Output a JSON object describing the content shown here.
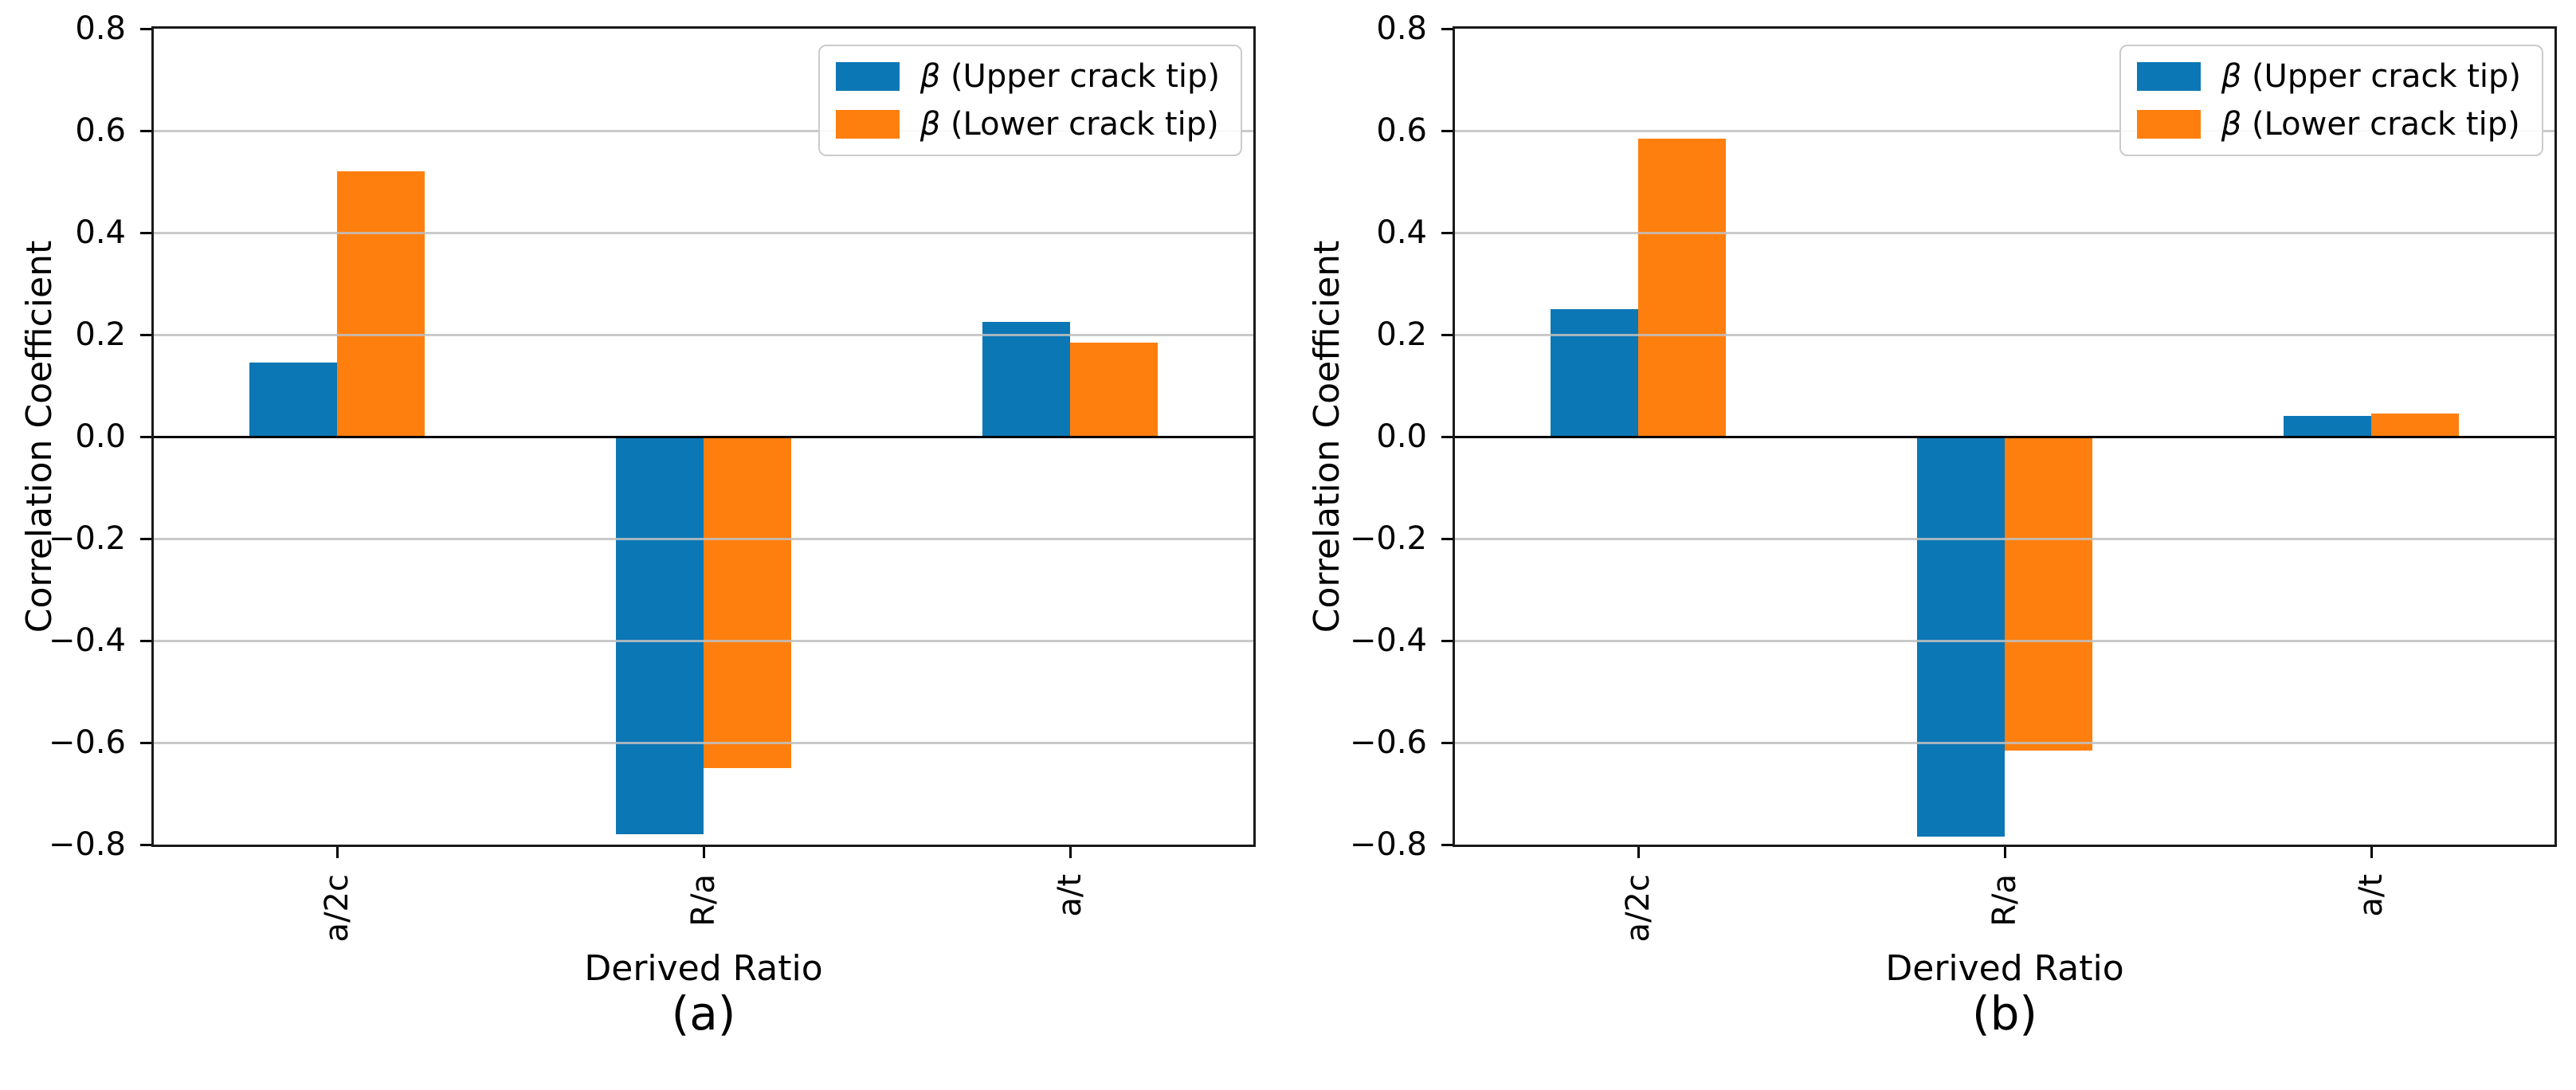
{
  "figure": {
    "background": "#ffffff",
    "grid_color": "#bfbfbf",
    "axis_color": "#000000",
    "legend_border_color": "#cbcbcb"
  },
  "chart_data": [
    {
      "type": "bar",
      "caption": "(a)",
      "xlabel": "Derived Ratio",
      "ylabel": "Correlation Coefficient",
      "categories": [
        "a/2c",
        "R/a",
        "a/t"
      ],
      "series": [
        {
          "name": "β (Upper crack tip)",
          "color": "#0c77b5",
          "values": [
            0.145,
            -0.78,
            0.225
          ]
        },
        {
          "name": "β (Lower crack tip)",
          "color": "#ff7f0e",
          "values": [
            0.52,
            -0.65,
            0.185
          ]
        }
      ],
      "ylim": [
        -0.8,
        0.8
      ],
      "yticks": [
        {
          "v": 0.8,
          "label": "0.8"
        },
        {
          "v": 0.6,
          "label": "0.6"
        },
        {
          "v": 0.4,
          "label": "0.4"
        },
        {
          "v": 0.2,
          "label": "0.2"
        },
        {
          "v": 0.0,
          "label": "0.0"
        },
        {
          "v": -0.2,
          "label": "−0.2"
        },
        {
          "v": -0.4,
          "label": "−0.4"
        },
        {
          "v": -0.6,
          "label": "−0.6"
        },
        {
          "v": -0.8,
          "label": "−0.8"
        }
      ],
      "grid": true,
      "legend_position": "upper right",
      "legend": {
        "symbol": "β",
        "entries": [
          " (Upper crack tip)",
          " (Lower crack tip)"
        ]
      }
    },
    {
      "type": "bar",
      "caption": "(b)",
      "xlabel": "Derived Ratio",
      "ylabel": "Correlation Coefficient",
      "categories": [
        "a/2c",
        "R/a",
        "a/t"
      ],
      "series": [
        {
          "name": "β (Upper crack tip)",
          "color": "#0c77b5",
          "values": [
            0.25,
            -0.785,
            0.04
          ]
        },
        {
          "name": "β (Lower crack tip)",
          "color": "#ff7f0e",
          "values": [
            0.585,
            -0.615,
            0.045
          ]
        }
      ],
      "ylim": [
        -0.8,
        0.8
      ],
      "yticks": [
        {
          "v": 0.8,
          "label": "0.8"
        },
        {
          "v": 0.6,
          "label": "0.6"
        },
        {
          "v": 0.4,
          "label": "0.4"
        },
        {
          "v": 0.2,
          "label": "0.2"
        },
        {
          "v": 0.0,
          "label": "0.0"
        },
        {
          "v": -0.2,
          "label": "−0.2"
        },
        {
          "v": -0.4,
          "label": "−0.4"
        },
        {
          "v": -0.6,
          "label": "−0.6"
        },
        {
          "v": -0.8,
          "label": "−0.8"
        }
      ],
      "grid": true,
      "legend_position": "upper right",
      "legend": {
        "symbol": "β",
        "entries": [
          " (Upper crack tip)",
          " (Lower crack tip)"
        ]
      }
    }
  ]
}
